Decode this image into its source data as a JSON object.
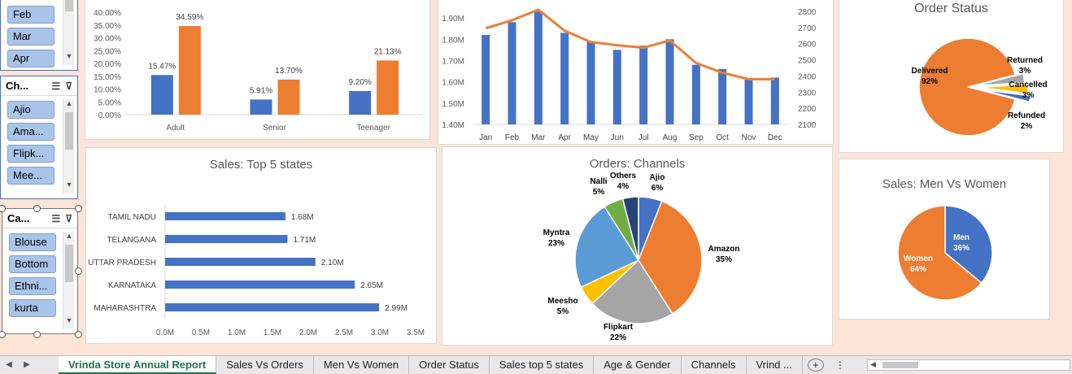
{
  "slicers": {
    "month": {
      "items": [
        "Feb",
        "Mar",
        "Apr"
      ]
    },
    "channel": {
      "title": "Ch...",
      "items": [
        "Ajio",
        "Ama...",
        "Flipk...",
        "Mee..."
      ]
    },
    "category": {
      "title": "Ca...",
      "items": [
        "Blouse",
        "Bottom",
        "Ethni...",
        "kurta"
      ]
    }
  },
  "charts": {
    "age_gender": {
      "type": "bar",
      "categories": [
        "Adult",
        "Senior",
        "Teenager"
      ],
      "series": [
        {
          "values": [
            15.47,
            5.91,
            9.2
          ],
          "labels": [
            "15.47%",
            "5.91%",
            "9.20%"
          ],
          "color": "#4472c4"
        },
        {
          "values": [
            34.59,
            13.7,
            21.13
          ],
          "labels": [
            "34.59%",
            "13.70%",
            "21.13%"
          ],
          "color": "#ed7d31"
        }
      ],
      "yticks": [
        "0.00%",
        "5.00%",
        "10.00%",
        "15.00%",
        "20.00%",
        "25.00%",
        "30.00%",
        "35.00%",
        "40.00%"
      ],
      "ylim": [
        0,
        40
      ]
    },
    "sales_orders": {
      "type": "bar+line",
      "categories": [
        "Jan",
        "Feb",
        "Mar",
        "Apr",
        "May",
        "Jun",
        "Jul",
        "Aug",
        "Sep",
        "Oct",
        "Nov",
        "Dec"
      ],
      "sales": {
        "values": [
          1.82,
          1.88,
          1.93,
          1.83,
          1.79,
          1.75,
          1.77,
          1.8,
          1.68,
          1.66,
          1.61,
          1.62
        ],
        "color": "#4472c4"
      },
      "orders": {
        "values": [
          2695,
          2745,
          2810,
          2680,
          2610,
          2590,
          2575,
          2620,
          2480,
          2420,
          2380,
          2380
        ],
        "color": "#ed7d31"
      },
      "yticks_left": [
        "1.40M",
        "1.50M",
        "1.60M",
        "1.70M",
        "1.80M",
        "1.90M"
      ],
      "ylim_left": [
        1.4,
        1.95
      ],
      "yticks_right": [
        "2100",
        "2200",
        "2300",
        "2400",
        "2500",
        "2600",
        "2700",
        "2800"
      ],
      "ylim_right": [
        2100,
        2825
      ]
    },
    "order_status": {
      "type": "pie",
      "title": "Order Status",
      "slices": [
        {
          "label": "Delivered",
          "value": 92,
          "pct": "92%",
          "color": "#ed7d31"
        },
        {
          "label": "Returned",
          "value": 3,
          "pct": "3%",
          "color": "#a5a5a5"
        },
        {
          "label": "Cancelled",
          "value": 3,
          "pct": "3%",
          "color": "#ffc000"
        },
        {
          "label": "Refunded",
          "value": 2,
          "pct": "2%",
          "color": "#4472c4"
        }
      ]
    },
    "top_states": {
      "type": "bar",
      "title": "Sales: Top 5 states",
      "categories": [
        "TAMIL NADU",
        "TELANGANA",
        "UTTAR PRADESH",
        "KARNATAKA",
        "MAHARASHTRA"
      ],
      "values": [
        1.68,
        1.71,
        2.1,
        2.65,
        2.99
      ],
      "labels": [
        "1.68M",
        "1.71M",
        "2.10M",
        "2.65M",
        "2.99M"
      ],
      "xticks": [
        "0.0M",
        "0.5M",
        "1.0M",
        "1.5M",
        "2.0M",
        "2.5M",
        "3.0M",
        "3.5M"
      ],
      "xlim": [
        0,
        3.5
      ],
      "color": "#4472c4"
    },
    "channels": {
      "type": "pie",
      "title": "Orders: Channels",
      "slices": [
        {
          "label": "Ajio",
          "value": 6,
          "pct": "6%",
          "color": "#4472c4"
        },
        {
          "label": "Amazon",
          "value": 35,
          "pct": "35%",
          "color": "#ed7d31"
        },
        {
          "label": "Flipkart",
          "value": 22,
          "pct": "22%",
          "color": "#a5a5a5"
        },
        {
          "label": "Meesho",
          "value": 5,
          "pct": "5%",
          "color": "#ffc000"
        },
        {
          "label": "Myntra",
          "value": 23,
          "pct": "23%",
          "color": "#5b9bd5"
        },
        {
          "label": "Nalli",
          "value": 5,
          "pct": "5%",
          "color": "#70ad47"
        },
        {
          "label": "Others",
          "value": 4,
          "pct": "4%",
          "color": "#264478"
        }
      ]
    },
    "men_women": {
      "type": "pie",
      "title": "Sales: Men Vs Women",
      "slices": [
        {
          "label": "Men",
          "value": 36,
          "pct": "36%",
          "color": "#4472c4"
        },
        {
          "label": "Women",
          "value": 64,
          "pct": "64%",
          "color": "#ed7d31"
        }
      ]
    }
  },
  "tabs": [
    "Vrinda Store Annual Report",
    "Sales Vs Orders",
    "Men Vs Women",
    "Order Status",
    "Sales top 5 states",
    "Age & Gender",
    "Channels",
    "Vrind ..."
  ],
  "active_tab": "Vrinda Store Annual Report",
  "colors": {
    "background": "#fce4d6",
    "tab_active": "#217346"
  }
}
